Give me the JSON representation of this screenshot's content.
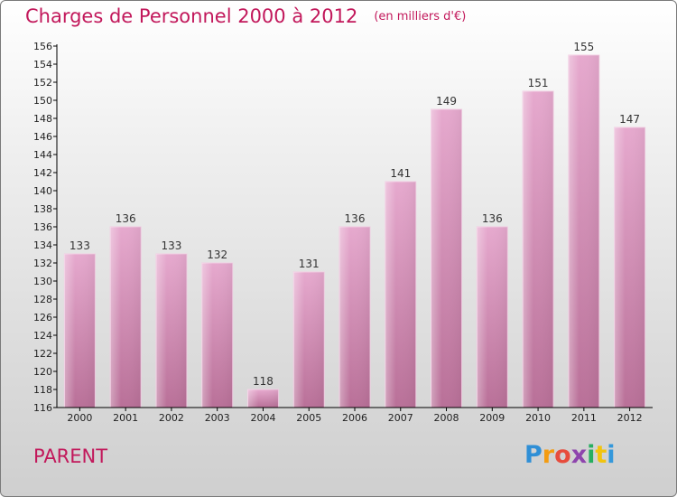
{
  "header": {
    "title": "Charges de Personnel 2000 à 2012",
    "subtitle": "(en milliers d'€)"
  },
  "footer": {
    "commune": "PARENT",
    "logo_text": "Proxiti"
  },
  "colors": {
    "title": "#c2185b",
    "bar_light": "#e5a8cd",
    "bar_dark": "#c97aaa",
    "bar_edge": "#f3d2e6",
    "axis": "#000000"
  },
  "chart_data": {
    "type": "bar",
    "categories": [
      "2000",
      "2001",
      "2002",
      "2003",
      "2004",
      "2005",
      "2006",
      "2007",
      "2008",
      "2009",
      "2010",
      "2011",
      "2012"
    ],
    "values": [
      133,
      136,
      133,
      132,
      118,
      131,
      136,
      141,
      149,
      136,
      151,
      155,
      147
    ],
    "ylim": [
      116,
      156
    ],
    "yticks": [
      116,
      118,
      120,
      122,
      124,
      126,
      128,
      130,
      132,
      134,
      136,
      138,
      140,
      142,
      144,
      146,
      148,
      150,
      152,
      154,
      156
    ],
    "grid": false,
    "legend": "none"
  }
}
